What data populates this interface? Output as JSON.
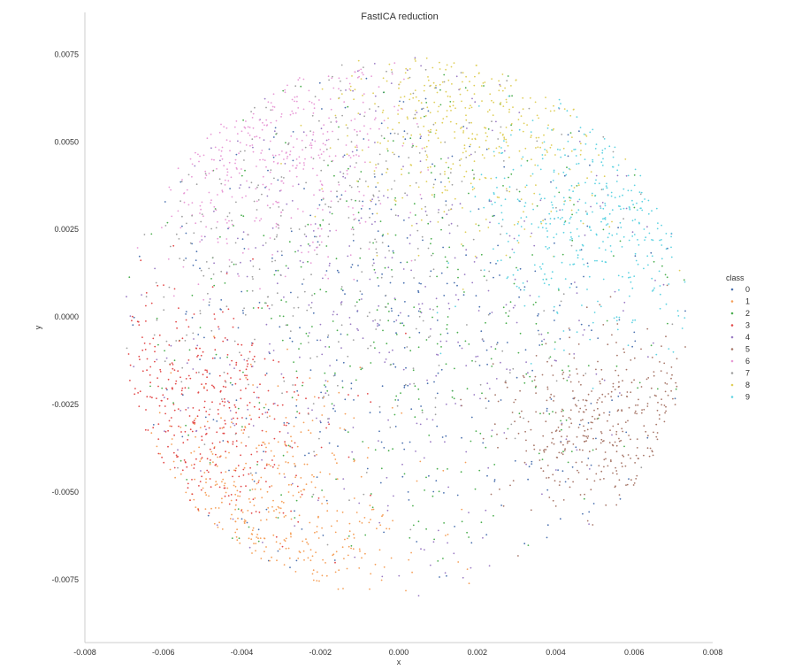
{
  "chart_data": {
    "type": "scatter",
    "title": "FastICA reduction",
    "xlabel": "x",
    "ylabel": "y",
    "xlim": [
      -0.008,
      0.008
    ],
    "ylim": [
      -0.0093,
      0.0087
    ],
    "xticks": [
      "-0.008",
      "-0.006",
      "-0.004",
      "-0.002",
      "0.000",
      "0.002",
      "0.004",
      "0.006",
      "0.008"
    ],
    "xtick_values": [
      -0.008,
      -0.006,
      -0.004,
      -0.002,
      0.0,
      0.002,
      0.004,
      0.006,
      0.008
    ],
    "yticks": [
      "0.0075",
      "0.0050",
      "0.0025",
      "0.0000",
      "-0.0025",
      "-0.0050",
      "-0.0075"
    ],
    "ytick_values": [
      0.0075,
      0.005,
      0.0025,
      0.0,
      -0.0025,
      -0.005,
      -0.0075
    ],
    "grid": false,
    "legend": {
      "title": "class",
      "placement": "right",
      "entries": [
        "0",
        "1",
        "2",
        "3",
        "4",
        "5",
        "6",
        "7",
        "8",
        "9"
      ]
    },
    "series": [
      {
        "name": "0",
        "color": "#4c72b0",
        "center": [
          0.0,
          0.0
        ],
        "spread": 0.0045
      },
      {
        "name": "1",
        "color": "#f5a05a",
        "center": [
          -0.0035,
          -0.006
        ],
        "spread": 0.0018
      },
      {
        "name": "2",
        "color": "#4caf50",
        "center": [
          0.0002,
          0.0
        ],
        "spread": 0.004
      },
      {
        "name": "3",
        "color": "#e24a4a",
        "center": [
          -0.0055,
          -0.003
        ],
        "spread": 0.0018
      },
      {
        "name": "4",
        "color": "#9b7cc4",
        "center": [
          -0.0005,
          0.0005
        ],
        "spread": 0.0042
      },
      {
        "name": "5",
        "color": "#a8786a",
        "center": [
          0.0052,
          -0.003
        ],
        "spread": 0.0013
      },
      {
        "name": "6",
        "color": "#e89ad6",
        "center": [
          -0.0035,
          0.0055
        ],
        "spread": 0.0018
      },
      {
        "name": "7",
        "color": "#a0a0a0",
        "center": [
          -0.002,
          0.003
        ],
        "spread": 0.0035
      },
      {
        "name": "8",
        "color": "#e0cf5a",
        "center": [
          0.0018,
          0.0058
        ],
        "spread": 0.0017
      },
      {
        "name": "9",
        "color": "#5fd3e2",
        "center": [
          0.0055,
          0.003
        ],
        "spread": 0.0017
      }
    ],
    "cloud": {
      "center": [
        0.0002,
        -0.0003
      ],
      "radius": 0.0072
    }
  }
}
